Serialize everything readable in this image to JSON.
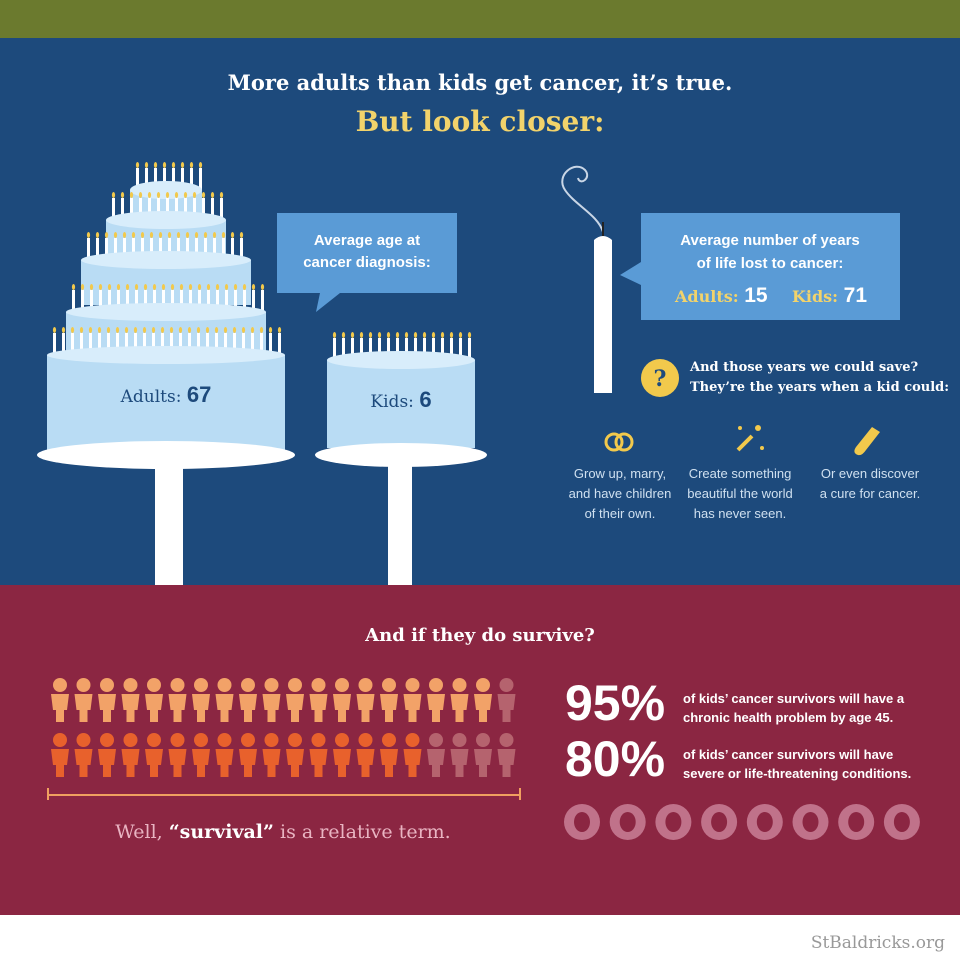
{
  "header": {
    "line1": "More adults than kids get cancer, it’s true.",
    "line2": "But look closer:"
  },
  "age_callout": {
    "lines": [
      "Average age at",
      "cancer diagnosis:"
    ],
    "adults": {
      "label": "Adults:",
      "value": "67"
    },
    "kids": {
      "label": "Kids:",
      "value": "6"
    }
  },
  "years_callout": {
    "lines": [
      "Average number of years",
      "of life lost to cancer:"
    ],
    "adults": {
      "label": "Adults:",
      "value": "15"
    },
    "kids": {
      "label": "Kids:",
      "value": "71"
    }
  },
  "question": {
    "lines": [
      "And those years we could save?",
      "They’re the years when a kid could:"
    ]
  },
  "items": [
    {
      "lines": [
        "Grow up, marry,",
        "and have children",
        "of their own."
      ]
    },
    {
      "lines": [
        "Create something",
        "beautiful the world",
        "has never seen."
      ]
    },
    {
      "lines": [
        "Or even discover",
        "a cure for cancer."
      ]
    }
  ],
  "survival": {
    "title": "And if they do survive?",
    "stats": [
      {
        "value": 95,
        "label": "95%",
        "lines": [
          "of kids’ cancer survivors will have a",
          "chronic health problem by age 45."
        ]
      },
      {
        "value": 80,
        "label": "80%",
        "lines": [
          "of kids’ cancer survivors will have",
          "severe or life-threatening conditions."
        ]
      }
    ],
    "caption": {
      "before": "Well, ",
      "emphasis": "“survival”",
      "after": " is a relative term."
    }
  },
  "footer": "StBaldricks.org"
}
